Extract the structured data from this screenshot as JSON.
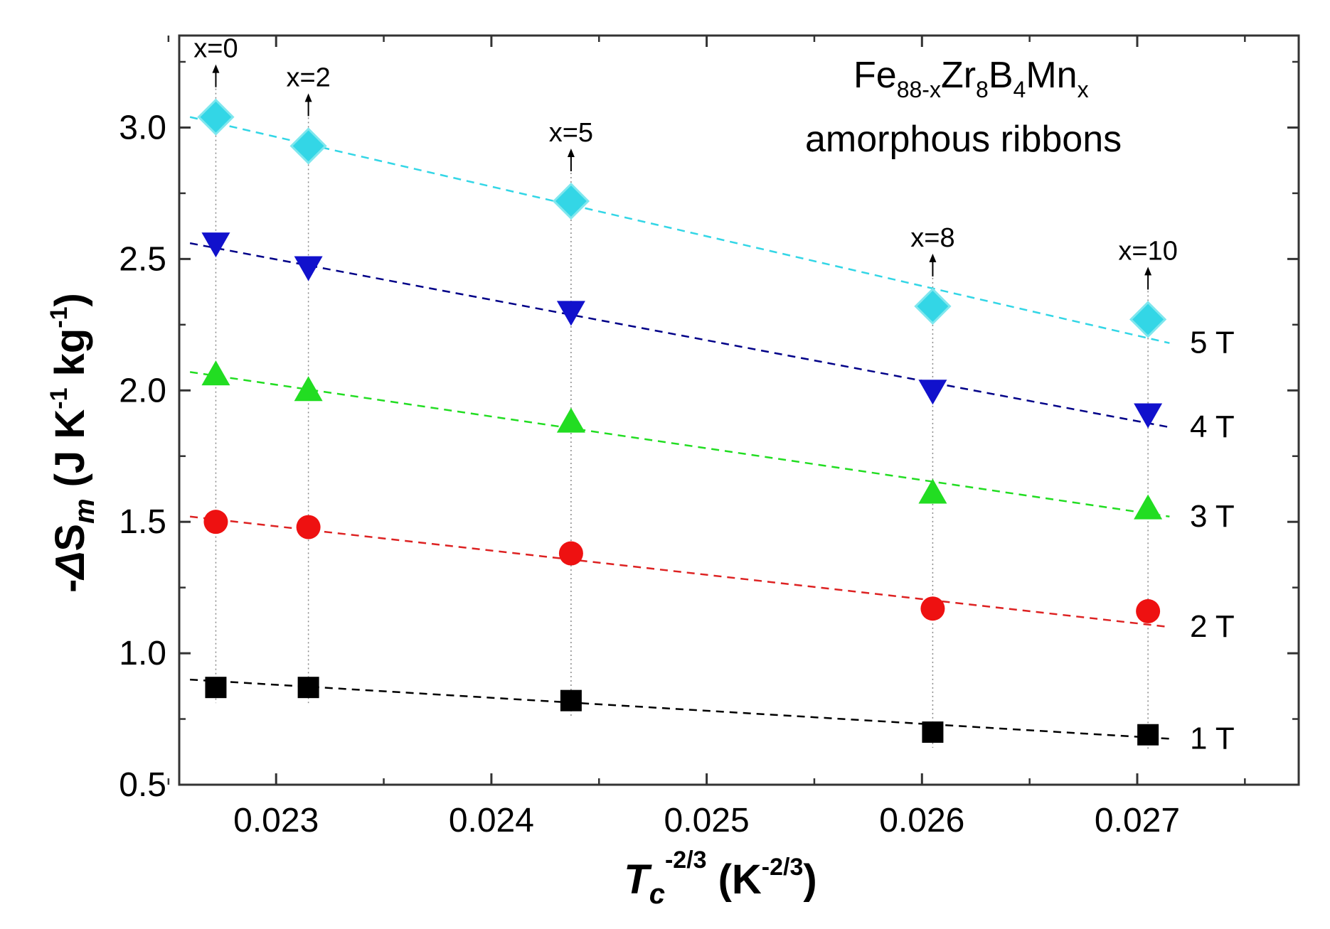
{
  "chart_data": {
    "type": "scatter",
    "title": {
      "element_1": "Fe",
      "element_1_sub": "88-x",
      "element_2": "Zr",
      "element_2_sub": "8",
      "element_3": "B",
      "element_3_sub": "4",
      "element_4": "Mn",
      "element_4_sub": "x",
      "subtitle": "amorphous ribbons"
    },
    "xlabel": {
      "main": "T",
      "main_sub": "c",
      "main_sup": "-2/3",
      "unit_open": "(K",
      "unit_sup": "-2/3",
      "unit_close": ")"
    },
    "ylabel": {
      "prefix": "-",
      "delta": "Δ",
      "symbol": "S",
      "symbol_sub": "m",
      "unit_1": "(J K",
      "unit_1_sup": "-1",
      "unit_2": " kg",
      "unit_2_sup": "-1",
      "unit_close": ")"
    },
    "xlim": [
      0.02255,
      0.02775
    ],
    "ylim": [
      0.5,
      3.35
    ],
    "x_ticks": [
      {
        "value": 0.023,
        "label": "0.023"
      },
      {
        "value": 0.024,
        "label": "0.024"
      },
      {
        "value": 0.025,
        "label": "0.025"
      },
      {
        "value": 0.026,
        "label": "0.026"
      },
      {
        "value": 0.027,
        "label": "0.027"
      }
    ],
    "x_minor_ticks": [
      0.0225,
      0.0235,
      0.0245,
      0.0255,
      0.0265,
      0.0275
    ],
    "y_ticks": [
      {
        "value": 0.5,
        "label": "0.5"
      },
      {
        "value": 1.0,
        "label": "1.0"
      },
      {
        "value": 1.5,
        "label": "1.5"
      },
      {
        "value": 2.0,
        "label": "2.0"
      },
      {
        "value": 2.5,
        "label": "2.5"
      },
      {
        "value": 3.0,
        "label": "3.0"
      }
    ],
    "y_minor_ticks": [
      0.75,
      1.25,
      1.75,
      2.25,
      2.75,
      3.25
    ],
    "x": [
      0.02272,
      0.02315,
      0.02437,
      0.02605,
      0.02705
    ],
    "composition_labels": [
      "x=0",
      "x=2",
      "x=5",
      "x=8",
      "x=10"
    ],
    "series": [
      {
        "name": "1 T",
        "marker": "square",
        "color": "#000000",
        "line_color": "#000000",
        "values": [
          0.87,
          0.87,
          0.82,
          0.7,
          0.69
        ],
        "fit": [
          0.9,
          0.675
        ],
        "fit_x": [
          0.0226,
          0.02715
        ]
      },
      {
        "name": "2 T",
        "marker": "circle",
        "color": "#ee1111",
        "line_color": "#dd2222",
        "values": [
          1.5,
          1.48,
          1.38,
          1.17,
          1.16
        ],
        "fit": [
          1.52,
          1.1
        ],
        "fit_x": [
          0.0226,
          0.02715
        ]
      },
      {
        "name": "3 T",
        "marker": "triangle-up",
        "color": "#22dd22",
        "line_color": "#22dd22",
        "values": [
          2.06,
          2.0,
          1.88,
          1.61,
          1.55
        ],
        "fit": [
          2.07,
          1.52
        ],
        "fit_x": [
          0.0226,
          0.02715
        ]
      },
      {
        "name": "4 T",
        "marker": "triangle-down",
        "color": "#1111cc",
        "line_color": "#000088",
        "values": [
          2.56,
          2.47,
          2.3,
          2.0,
          1.91
        ],
        "fit": [
          2.56,
          1.86
        ],
        "fit_x": [
          0.0226,
          0.02715
        ]
      },
      {
        "name": "5 T",
        "marker": "diamond",
        "color": "#33d6e6",
        "line_color": "#33d6e6",
        "values": [
          3.04,
          2.93,
          2.72,
          2.32,
          2.27
        ],
        "fit": [
          3.04,
          2.18
        ],
        "fit_x": [
          0.0226,
          0.02715
        ]
      }
    ],
    "legend": "right-inline"
  }
}
